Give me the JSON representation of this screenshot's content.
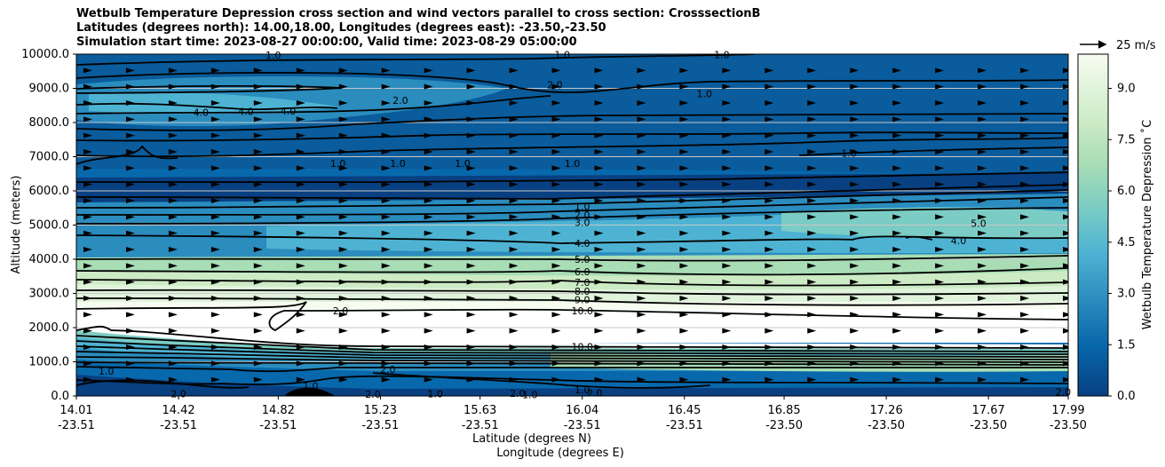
{
  "title_lines": [
    "Wetbulb Temperature Depression cross section and wind vectors parallel to cross section: CrosssectionB",
    "Latitudes (degrees north): 14.00,18.00, Longitudes (degrees east): -23.50,-23.50",
    "Simulation start time: 2023-08-27 00:00:00, Valid time: 2023-08-29 05:00:00"
  ],
  "chart_data": {
    "type": "contour_cross_section",
    "ylabel": "Altitude (meters)",
    "xlabel_lat": "Latitude (degrees N)",
    "xlabel_lon": "Longitude (degrees E)",
    "ylim": [
      0,
      10000
    ],
    "yticks": [
      "0.0",
      "1000.0",
      "2000.0",
      "3000.0",
      "4000.0",
      "5000.0",
      "6000.0",
      "7000.0",
      "8000.0",
      "9000.0",
      "10000.0"
    ],
    "xlim": [
      14.01,
      17.99
    ],
    "xticks": [
      {
        "lat": "14.01",
        "lon": "-23.51"
      },
      {
        "lat": "14.42",
        "lon": "-23.51"
      },
      {
        "lat": "14.82",
        "lon": "-23.51"
      },
      {
        "lat": "15.23",
        "lon": "-23.51"
      },
      {
        "lat": "15.63",
        "lon": "-23.51"
      },
      {
        "lat": "16.04",
        "lon": "-23.51"
      },
      {
        "lat": "16.45",
        "lon": "-23.51"
      },
      {
        "lat": "16.85",
        "lon": "-23.50"
      },
      {
        "lat": "17.26",
        "lon": "-23.50"
      },
      {
        "lat": "17.67",
        "lon": "-23.50"
      },
      {
        "lat": "17.99",
        "lon": "-23.50"
      }
    ],
    "colorbar": {
      "label": "Wetbulb Temperature Depression ˚C",
      "range": [
        0,
        10
      ],
      "ticks": [
        "0.0",
        "1.5",
        "3.0",
        "4.5",
        "6.0",
        "7.5",
        "9.0"
      ],
      "colors": [
        "#084081",
        "#0868ac",
        "#2b8cbe",
        "#4eb3d3",
        "#7bccc4",
        "#a8ddb5",
        "#ccebc5",
        "#e0f3db",
        "#f7fcf0"
      ]
    },
    "quiver_key": {
      "label": "25 m/s",
      "speed": 25
    },
    "contour_labels": [
      {
        "label": "1.0",
        "x": 16.04,
        "y": 5540
      },
      {
        "label": "2.0",
        "x": 16.04,
        "y": 5300
      },
      {
        "label": "3.0",
        "x": 16.04,
        "y": 5080
      },
      {
        "label": "4.0",
        "x": 16.04,
        "y": 4470
      },
      {
        "label": "5.0",
        "x": 16.04,
        "y": 4000
      },
      {
        "label": "6.0",
        "x": 16.04,
        "y": 3630
      },
      {
        "label": "7.0",
        "x": 16.04,
        "y": 3330
      },
      {
        "label": "8.0",
        "x": 16.04,
        "y": 3070
      },
      {
        "label": "9.0",
        "x": 16.04,
        "y": 2820
      },
      {
        "label": "10.0",
        "x": 16.04,
        "y": 2500
      },
      {
        "label": "10.0",
        "x": 16.04,
        "y": 1440
      },
      {
        "label": "1.0",
        "x": 16.04,
        "y": 180
      },
      {
        "label": "2.0",
        "x": 14.42,
        "y": 70
      },
      {
        "label": "2.0",
        "x": 16.09,
        "y": 90
      },
      {
        "label": "2.0",
        "x": 17.97,
        "y": 120
      },
      {
        "label": "1.0",
        "x": 14.13,
        "y": 730
      },
      {
        "label": "1.0",
        "x": 14.95,
        "y": 300
      },
      {
        "label": "2.0",
        "x": 15.26,
        "y": 780
      },
      {
        "label": "2.0",
        "x": 15.2,
        "y": 50
      },
      {
        "label": "1.0",
        "x": 15.45,
        "y": 60
      },
      {
        "label": "1.0",
        "x": 15.83,
        "y": 35
      },
      {
        "label": "2.0",
        "x": 15.78,
        "y": 80
      },
      {
        "label": "2.0",
        "x": 15.07,
        "y": 2500
      },
      {
        "label": "4.0",
        "x": 14.51,
        "y": 8300
      },
      {
        "label": "4.0",
        "x": 14.86,
        "y": 8340
      },
      {
        "label": "4.0",
        "x": 14.69,
        "y": 8320
      },
      {
        "label": "2.0",
        "x": 15.31,
        "y": 8650
      },
      {
        "label": "2.0",
        "x": 15.93,
        "y": 9100
      },
      {
        "label": "1.0",
        "x": 16.53,
        "y": 8850
      },
      {
        "label": "1.0",
        "x": 15.06,
        "y": 6800
      },
      {
        "label": "1.0",
        "x": 15.3,
        "y": 6800
      },
      {
        "label": "1.0",
        "x": 15.56,
        "y": 6800
      },
      {
        "label": "1.0",
        "x": 16.0,
        "y": 6800
      },
      {
        "label": "1.0",
        "x": 17.11,
        "y": 7100
      },
      {
        "label": "1.0",
        "x": 14.8,
        "y": 9980
      },
      {
        "label": "1.0",
        "x": 15.96,
        "y": 9990
      },
      {
        "label": "1.0",
        "x": 16.6,
        "y": 9990
      },
      {
        "label": "5.0",
        "x": 17.63,
        "y": 5050
      },
      {
        "label": "4.0",
        "x": 17.55,
        "y": 4550
      }
    ]
  }
}
